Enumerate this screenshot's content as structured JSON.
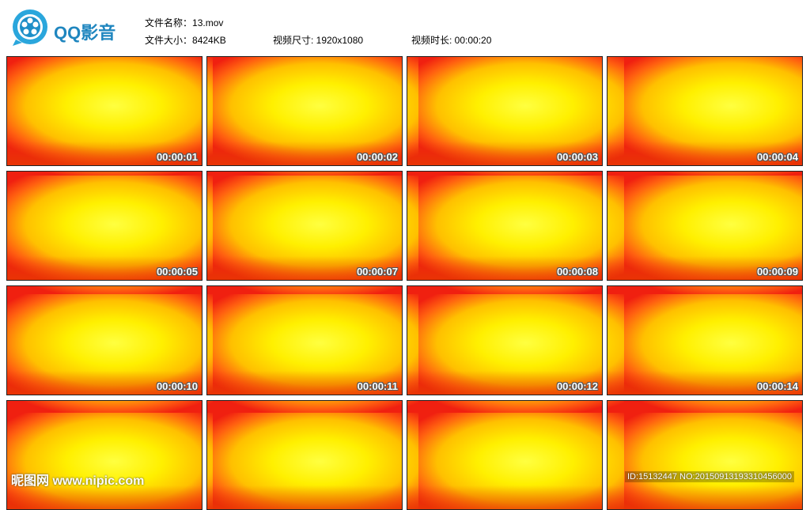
{
  "header": {
    "logo_text": "QQ影音",
    "file_name_label": "文件名称：",
    "file_name": "13.mov",
    "file_size_label": "文件大小：",
    "file_size": "8424KB",
    "video_size_label": "视频尺寸: ",
    "video_size": "1920x1080",
    "duration_label": "视频时长: ",
    "duration": "00:00:20"
  },
  "thumbnails": [
    "00:00:01",
    "00:00:02",
    "00:00:03",
    "00:00:04",
    "00:00:05",
    "00:00:07",
    "00:00:08",
    "00:00:09",
    "00:00:10",
    "00:00:11",
    "00:00:12",
    "00:00:14"
  ],
  "watermark": {
    "site": "昵图网 www.nipic.com",
    "id": "ID:15132447 NO:20150913193310456000"
  }
}
